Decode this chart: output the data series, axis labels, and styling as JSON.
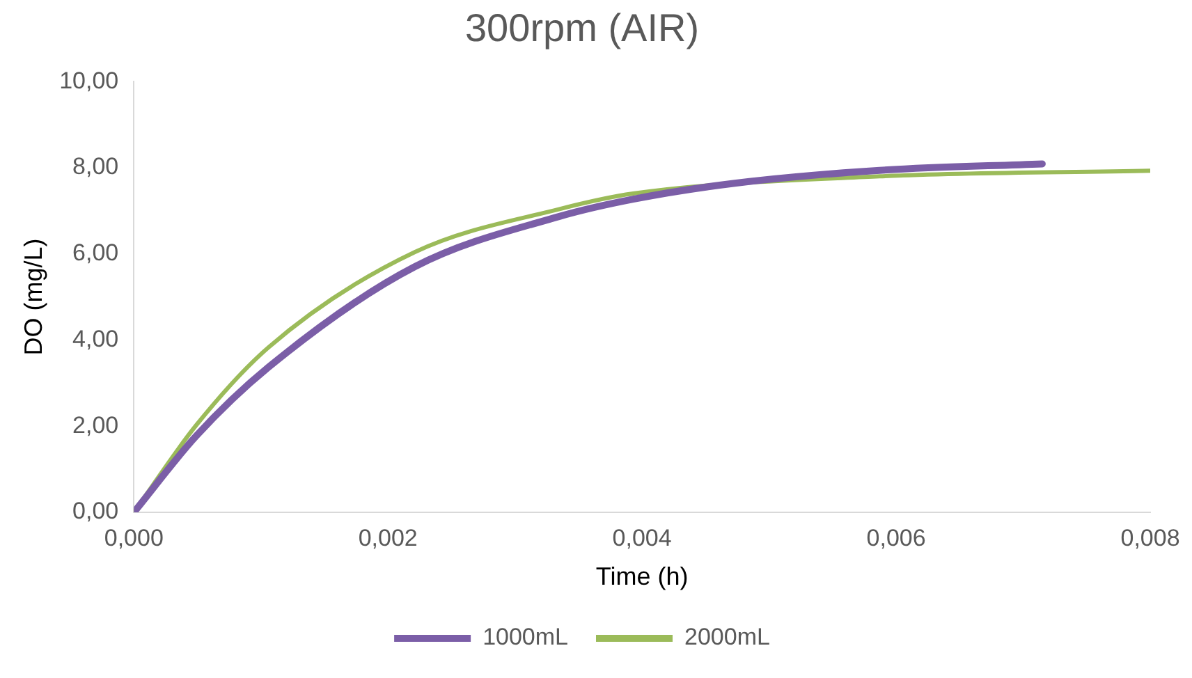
{
  "chart_data": {
    "type": "line",
    "title": "300rpm (AIR)",
    "xlabel": "Time (h)",
    "ylabel": "DO (mg/L)",
    "xlim": [
      0,
      0.008
    ],
    "xticks": [
      {
        "value": 0,
        "label": "0,000"
      },
      {
        "value": 0.002,
        "label": "0,002"
      },
      {
        "value": 0.004,
        "label": "0,004"
      },
      {
        "value": 0.006,
        "label": "0,006"
      },
      {
        "value": 0.008,
        "label": "0,008"
      }
    ],
    "ylim": [
      0,
      10
    ],
    "yticks": [
      {
        "value": 0,
        "label": "0,00"
      },
      {
        "value": 2,
        "label": "2,00"
      },
      {
        "value": 4,
        "label": "4,00"
      },
      {
        "value": 6,
        "label": "6,00"
      },
      {
        "value": 8,
        "label": "8,00"
      },
      {
        "value": 10,
        "label": "10,00"
      }
    ],
    "grid": false,
    "legend": "bottom",
    "marker": "none",
    "line_style": "solid",
    "series": [
      {
        "name": "1000mL",
        "color": "#7b5ea7",
        "x": [
          0,
          0.00049,
          0.00106,
          0.00221,
          0.00335,
          0.00393,
          0.00473,
          0.00587,
          0.00715
        ],
        "values": [
          0,
          1.77,
          3.37,
          5.7,
          6.87,
          7.27,
          7.64,
          7.94,
          8.09
        ]
      },
      {
        "name": "2000mL",
        "color": "#9bbb59",
        "x": [
          0,
          0.00049,
          0.00106,
          0.00221,
          0.00335,
          0.00393,
          0.00587,
          0.008
        ],
        "values": [
          0,
          2.02,
          3.83,
          6.04,
          7.04,
          7.4,
          7.8,
          7.93
        ]
      }
    ]
  }
}
